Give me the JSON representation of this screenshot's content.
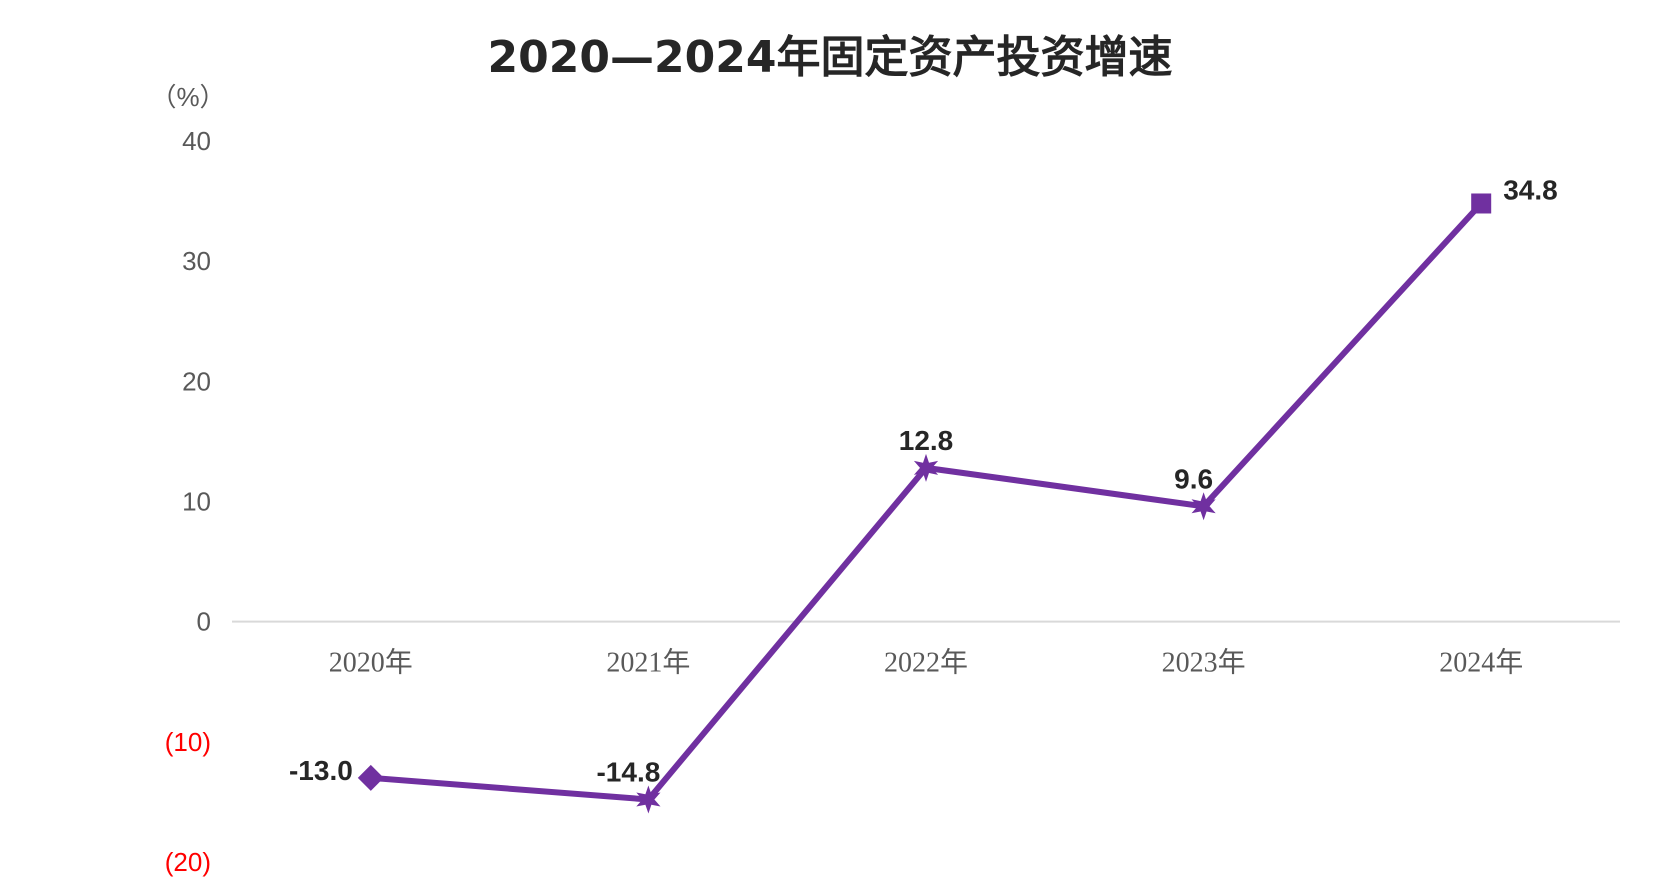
{
  "chart_data": {
    "type": "line",
    "title": "2020—2024年固定资产投资增速",
    "unit": "（%）",
    "categories": [
      "2020年",
      "2021年",
      "2022年",
      "2023年",
      "2024年"
    ],
    "series": [
      {
        "values": [
          -13.0,
          -14.8,
          12.8,
          9.6,
          34.8
        ],
        "value_labels": [
          "-13.0",
          "-14.8",
          "12.8",
          "9.6",
          "34.8"
        ],
        "color": "#7030A0",
        "markers": [
          "diamond",
          "star",
          "star",
          "star",
          "square"
        ]
      }
    ],
    "y_ticks": [
      {
        "value": 40,
        "label": "40"
      },
      {
        "value": 30,
        "label": "30"
      },
      {
        "value": 20,
        "label": "20"
      },
      {
        "value": 10,
        "label": "10"
      },
      {
        "value": 0,
        "label": "0"
      },
      {
        "value": -10,
        "label": "(10)"
      },
      {
        "value": -20,
        "label": "(20)"
      }
    ],
    "ylim": [
      -20,
      40
    ],
    "grid": false,
    "legend": "none",
    "colors": {
      "line": "#7030A0",
      "positive_tick": "#595959",
      "negative_tick": "#FF0000",
      "axis": "#D9D9D9"
    }
  }
}
